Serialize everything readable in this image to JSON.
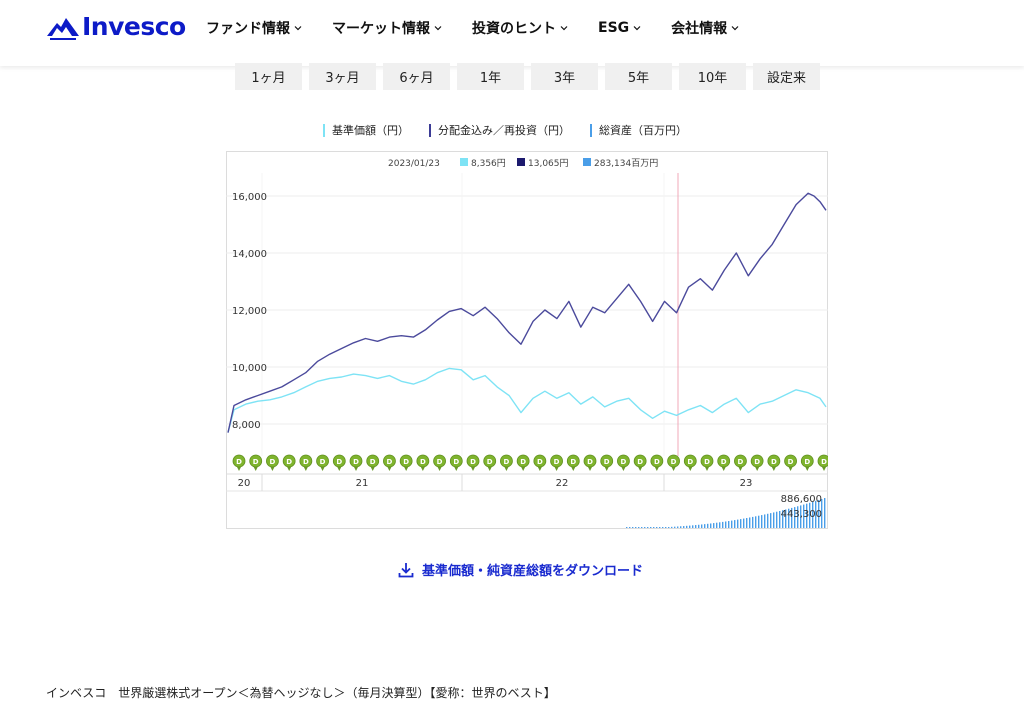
{
  "header": {
    "logo_text": "Invesco",
    "nav": [
      {
        "label": "ファンド情報"
      },
      {
        "label": "マーケット情報"
      },
      {
        "label": "投資のヒント"
      },
      {
        "label": "ESG"
      },
      {
        "label": "会社情報"
      }
    ]
  },
  "periods": [
    "1ヶ月",
    "3ヶ月",
    "6ヶ月",
    "1年",
    "3年",
    "5年",
    "10年",
    "設定来"
  ],
  "legend": [
    {
      "label": "基準価額（円）",
      "color": "#7ee3f5"
    },
    {
      "label": "分配金込み／再投資（円）",
      "color": "#3c3c96"
    },
    {
      "label": "総資産（百万円）",
      "color": "#4a9ee8"
    }
  ],
  "tooltip": {
    "date": "2023/01/23",
    "nav": "8,356円",
    "reinvested": "13,065円",
    "assets": "283,134百万円"
  },
  "chart_data": {
    "type": "line",
    "y_ticks": [
      "16,000",
      "14,000",
      "12,000",
      "10,000",
      "8,000"
    ],
    "y_range": [
      7300,
      17600
    ],
    "x_labels": [
      "20",
      "21",
      "22",
      "23"
    ],
    "marker_label": "D",
    "marker_count": 36,
    "series": [
      {
        "name": "分配金込み／再投資（円）",
        "color": "#4b4a9c",
        "points": [
          [
            0,
            7700
          ],
          [
            0.01,
            8650
          ],
          [
            0.03,
            8850
          ],
          [
            0.05,
            9000
          ],
          [
            0.07,
            9150
          ],
          [
            0.09,
            9300
          ],
          [
            0.11,
            9550
          ],
          [
            0.13,
            9800
          ],
          [
            0.15,
            10200
          ],
          [
            0.17,
            10450
          ],
          [
            0.19,
            10650
          ],
          [
            0.21,
            10850
          ],
          [
            0.23,
            11000
          ],
          [
            0.25,
            10900
          ],
          [
            0.27,
            11050
          ],
          [
            0.29,
            11100
          ],
          [
            0.31,
            11050
          ],
          [
            0.33,
            11300
          ],
          [
            0.35,
            11650
          ],
          [
            0.37,
            11950
          ],
          [
            0.39,
            12050
          ],
          [
            0.41,
            11800
          ],
          [
            0.43,
            12100
          ],
          [
            0.45,
            11700
          ],
          [
            0.47,
            11200
          ],
          [
            0.49,
            10800
          ],
          [
            0.51,
            11600
          ],
          [
            0.53,
            12000
          ],
          [
            0.55,
            11700
          ],
          [
            0.57,
            12300
          ],
          [
            0.59,
            11400
          ],
          [
            0.61,
            12100
          ],
          [
            0.63,
            11900
          ],
          [
            0.65,
            12400
          ],
          [
            0.67,
            12900
          ],
          [
            0.69,
            12300
          ],
          [
            0.71,
            11600
          ],
          [
            0.73,
            12300
          ],
          [
            0.75,
            11900
          ],
          [
            0.77,
            12800
          ],
          [
            0.79,
            13100
          ],
          [
            0.81,
            12700
          ],
          [
            0.83,
            13400
          ],
          [
            0.85,
            14000
          ],
          [
            0.87,
            13200
          ],
          [
            0.89,
            13800
          ],
          [
            0.91,
            14300
          ],
          [
            0.93,
            15000
          ],
          [
            0.95,
            15700
          ],
          [
            0.97,
            16100
          ],
          [
            0.98,
            16000
          ],
          [
            0.99,
            15800
          ],
          [
            1,
            15500
          ]
        ]
      },
      {
        "name": "基準価額（円）",
        "color": "#7ee3f5",
        "points": [
          [
            0,
            7700
          ],
          [
            0.01,
            8500
          ],
          [
            0.03,
            8700
          ],
          [
            0.05,
            8800
          ],
          [
            0.07,
            8850
          ],
          [
            0.09,
            8950
          ],
          [
            0.11,
            9100
          ],
          [
            0.13,
            9300
          ],
          [
            0.15,
            9500
          ],
          [
            0.17,
            9600
          ],
          [
            0.19,
            9650
          ],
          [
            0.21,
            9750
          ],
          [
            0.23,
            9700
          ],
          [
            0.25,
            9600
          ],
          [
            0.27,
            9700
          ],
          [
            0.29,
            9500
          ],
          [
            0.31,
            9400
          ],
          [
            0.33,
            9550
          ],
          [
            0.35,
            9800
          ],
          [
            0.37,
            9950
          ],
          [
            0.39,
            9900
          ],
          [
            0.41,
            9550
          ],
          [
            0.43,
            9700
          ],
          [
            0.45,
            9300
          ],
          [
            0.47,
            9000
          ],
          [
            0.49,
            8400
          ],
          [
            0.51,
            8900
          ],
          [
            0.53,
            9150
          ],
          [
            0.55,
            8900
          ],
          [
            0.57,
            9100
          ],
          [
            0.59,
            8700
          ],
          [
            0.61,
            8950
          ],
          [
            0.63,
            8600
          ],
          [
            0.65,
            8800
          ],
          [
            0.67,
            8900
          ],
          [
            0.69,
            8500
          ],
          [
            0.71,
            8200
          ],
          [
            0.73,
            8450
          ],
          [
            0.75,
            8300
          ],
          [
            0.77,
            8500
          ],
          [
            0.79,
            8650
          ],
          [
            0.81,
            8400
          ],
          [
            0.83,
            8700
          ],
          [
            0.85,
            8900
          ],
          [
            0.87,
            8400
          ],
          [
            0.89,
            8700
          ],
          [
            0.91,
            8800
          ],
          [
            0.93,
            9000
          ],
          [
            0.95,
            9200
          ],
          [
            0.97,
            9100
          ],
          [
            0.98,
            9000
          ],
          [
            0.99,
            8900
          ],
          [
            1,
            8600
          ]
        ]
      }
    ],
    "assets": {
      "name": "総資産（百万円）",
      "labels": [
        "886,600",
        "443,300"
      ]
    }
  },
  "download_label": "基準価額・純資産総額をダウンロード",
  "fund_name": "インベスコ　世界厳選株式オープン＜為替ヘッジなし＞（毎月決算型）【愛称：世界のベスト】"
}
